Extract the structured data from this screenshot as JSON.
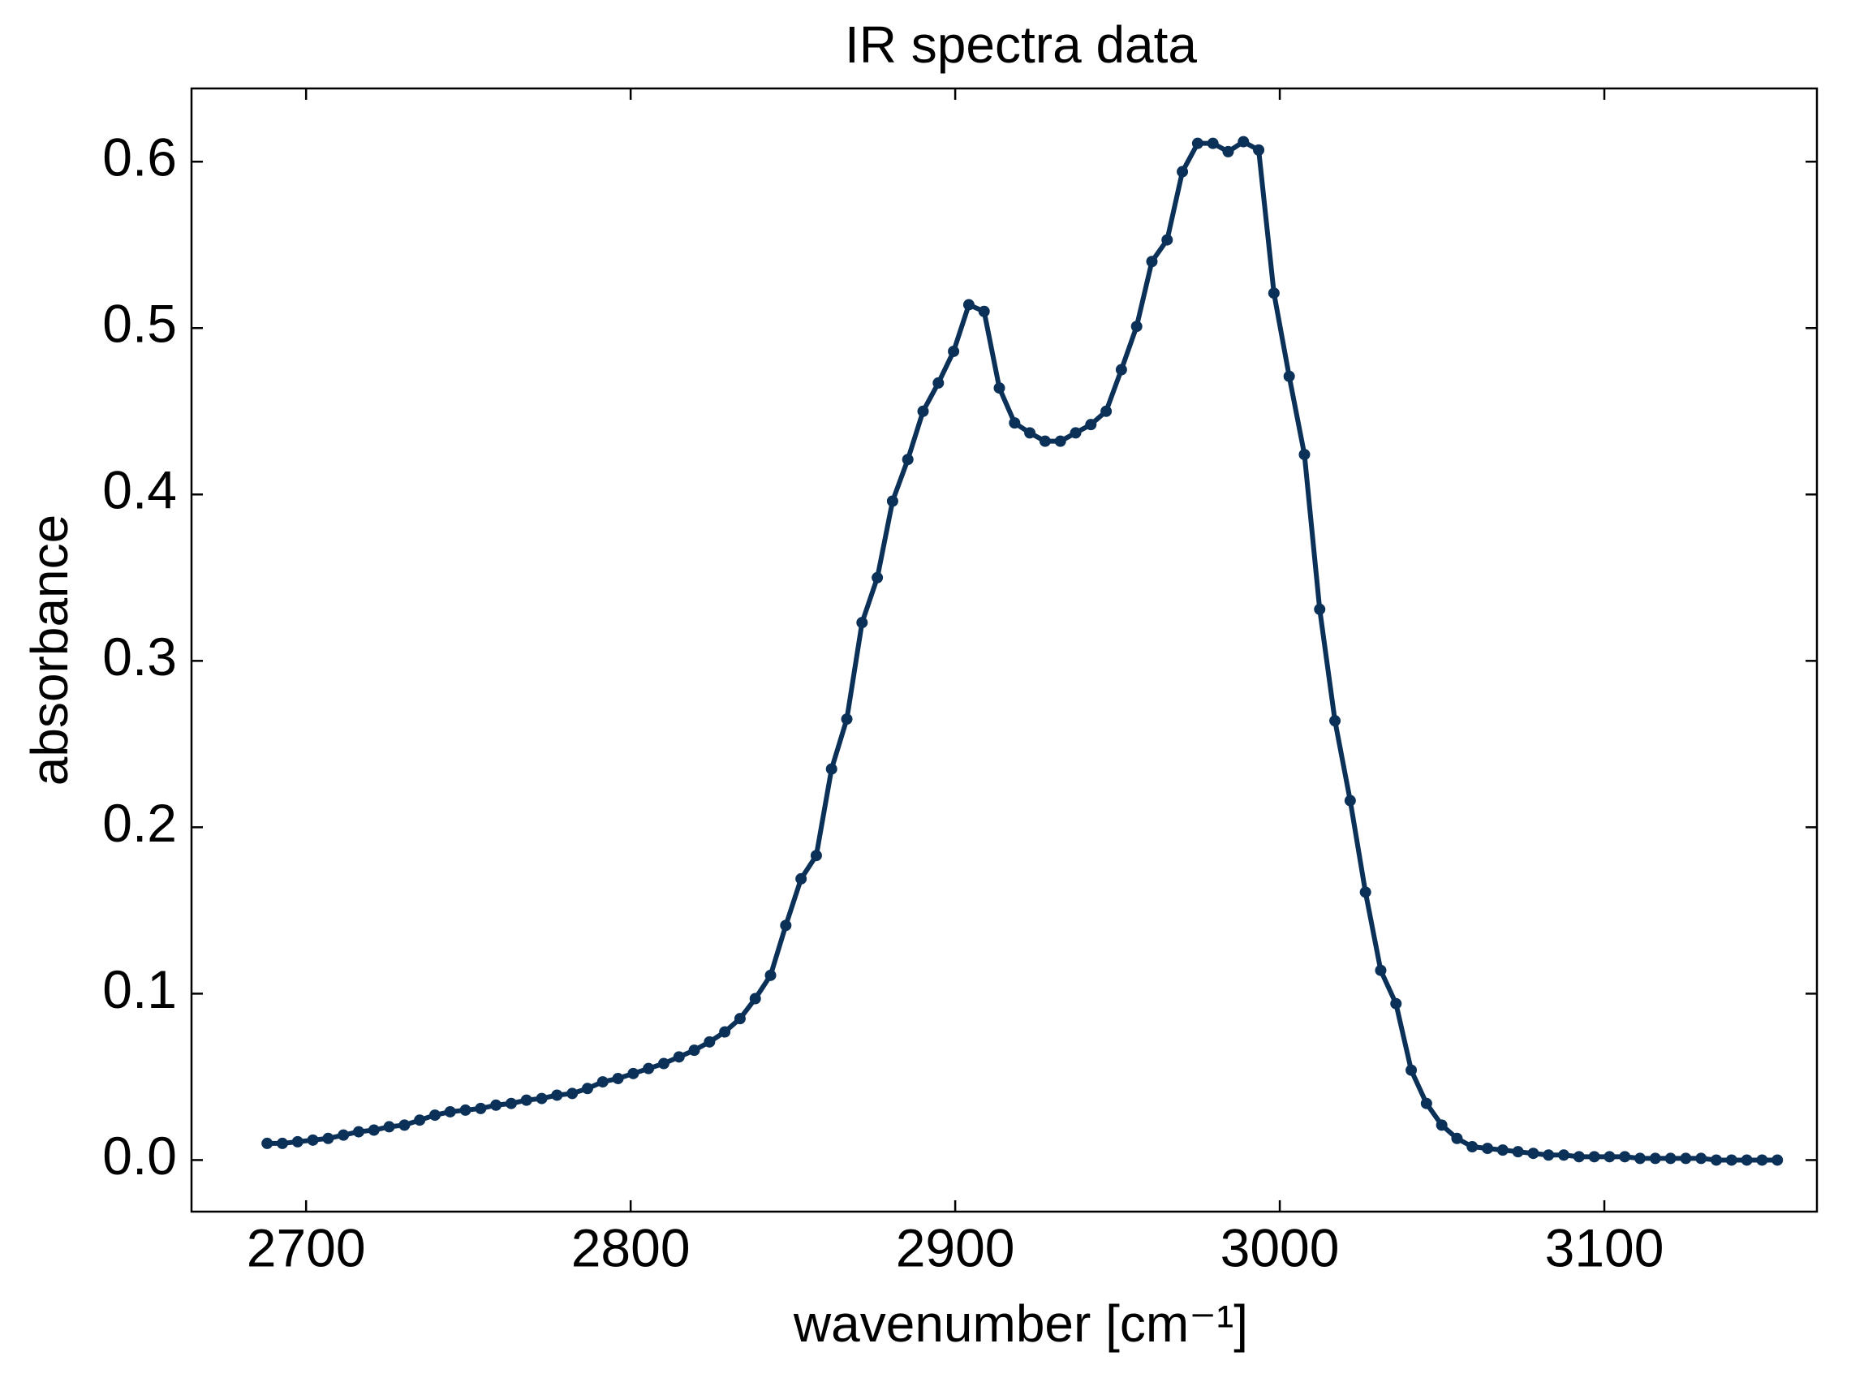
{
  "chart_data": {
    "type": "line",
    "title": "IR spectra data",
    "x_label": "wavenumber [cm⁻¹]",
    "y_label": "absorbance",
    "x": [
      2688.0,
      2692.7,
      2697.4,
      2702.1,
      2706.8,
      2711.5,
      2716.2,
      2720.9,
      2725.6,
      2730.3,
      2735.0,
      2739.7,
      2744.4,
      2749.1,
      2753.8,
      2758.5,
      2763.2,
      2767.9,
      2772.6,
      2777.3,
      2782.0,
      2786.7,
      2791.4,
      2796.1,
      2800.8,
      2805.5,
      2810.2,
      2814.9,
      2819.6,
      2824.3,
      2829.0,
      2833.7,
      2838.4,
      2843.1,
      2847.8,
      2852.5,
      2857.2,
      2861.9,
      2866.6,
      2871.3,
      2876.0,
      2880.7,
      2885.4,
      2890.1,
      2894.8,
      2899.5,
      2904.2,
      2908.9,
      2913.6,
      2918.3,
      2923.0,
      2927.7,
      2932.4,
      2937.1,
      2941.8,
      2946.5,
      2951.2,
      2955.9,
      2960.6,
      2965.3,
      2970.0,
      2974.7,
      2979.4,
      2984.1,
      2988.8,
      2993.5,
      2998.2,
      3002.9,
      3007.6,
      3012.3,
      3017.0,
      3021.7,
      3026.4,
      3031.1,
      3035.8,
      3040.5,
      3045.2,
      3049.9,
      3054.6,
      3059.3,
      3064.0,
      3068.7,
      3073.4,
      3078.1,
      3082.8,
      3087.5,
      3092.2,
      3096.9,
      3101.6,
      3106.3,
      3111.0,
      3115.7,
      3120.4,
      3125.1,
      3129.8,
      3134.5,
      3139.2,
      3143.9,
      3148.6,
      3153.3
    ],
    "series": [
      {
        "name": "absorbance",
        "color": "#0b3158",
        "values": [
          0.01,
          0.01,
          0.011,
          0.012,
          0.013,
          0.015,
          0.017,
          0.018,
          0.02,
          0.021,
          0.024,
          0.027,
          0.029,
          0.03,
          0.031,
          0.033,
          0.034,
          0.036,
          0.037,
          0.039,
          0.04,
          0.043,
          0.047,
          0.049,
          0.052,
          0.055,
          0.058,
          0.062,
          0.066,
          0.071,
          0.077,
          0.085,
          0.097,
          0.111,
          0.141,
          0.169,
          0.183,
          0.235,
          0.265,
          0.323,
          0.35,
          0.396,
          0.421,
          0.45,
          0.467,
          0.486,
          0.514,
          0.51,
          0.464,
          0.443,
          0.437,
          0.432,
          0.432,
          0.437,
          0.442,
          0.45,
          0.475,
          0.501,
          0.54,
          0.553,
          0.594,
          0.611,
          0.611,
          0.606,
          0.612,
          0.607,
          0.521,
          0.471,
          0.424,
          0.331,
          0.264,
          0.216,
          0.161,
          0.114,
          0.094,
          0.054,
          0.034,
          0.021,
          0.013,
          0.008,
          0.007,
          0.006,
          0.005,
          0.004,
          0.003,
          0.003,
          0.002,
          0.002,
          0.002,
          0.002,
          0.001,
          0.001,
          0.001,
          0.001,
          0.001,
          0.0,
          0.0,
          0.0,
          0.0,
          0.0
        ]
      }
    ],
    "xlim": [
      2664.7,
      3165.5
    ],
    "xticks": [
      2700,
      2800,
      2900,
      3000,
      3100
    ],
    "ylim": [
      -0.031,
      0.644
    ],
    "yticks": [
      {
        "value": 0,
        "label": "0.0"
      },
      0.1,
      0.2,
      0.3,
      0.4,
      0.5,
      0.6
    ],
    "grid": false,
    "markers": true
  }
}
